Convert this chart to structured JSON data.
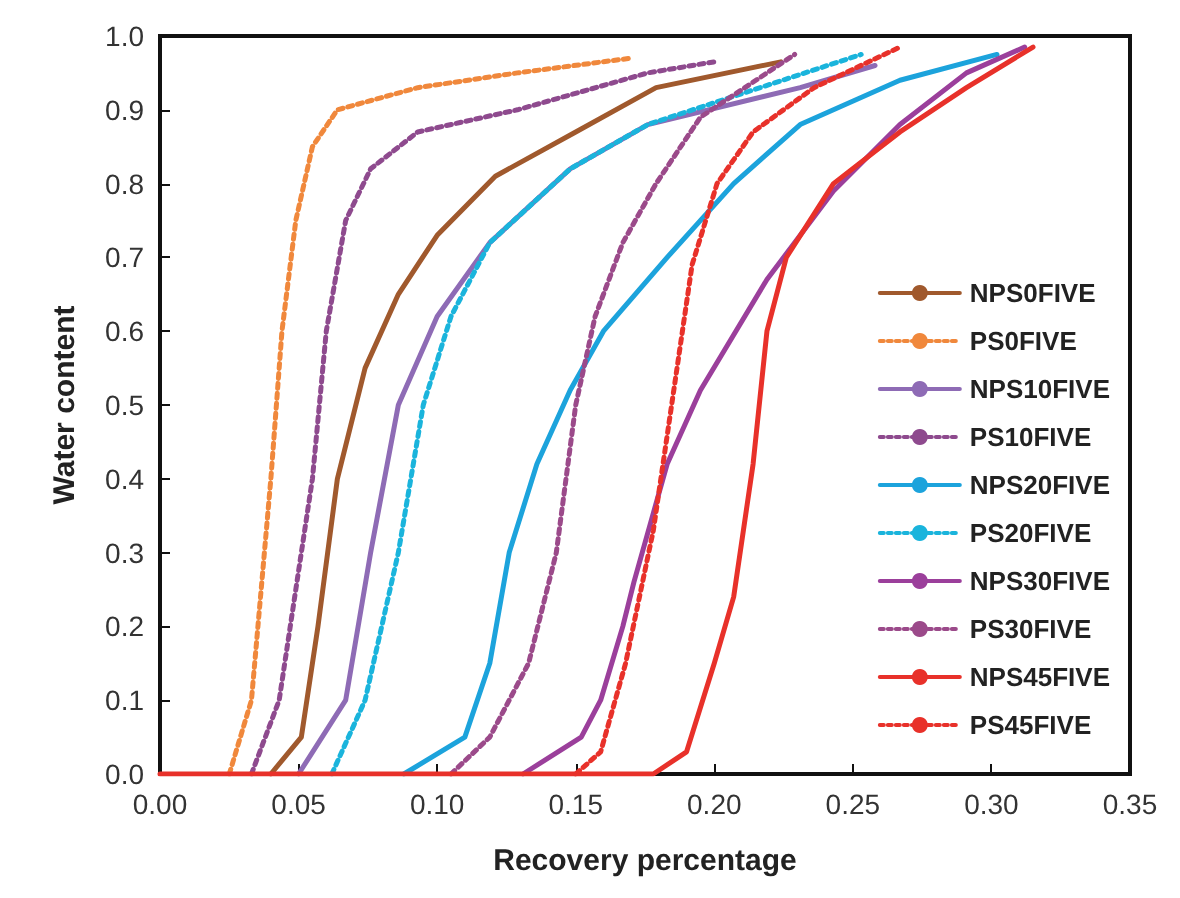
{
  "chart_data": {
    "type": "line",
    "xlabel": "Recovery percentage",
    "ylabel": "Water content",
    "xlim": [
      0,
      0.35
    ],
    "ylim": [
      0,
      1.0
    ],
    "xticks": [
      {
        "value": 0,
        "label": "0.00"
      },
      {
        "value": 0.05,
        "label": "0.05"
      },
      {
        "value": 0.1,
        "label": "0.10"
      },
      {
        "value": 0.15,
        "label": "0.15"
      },
      {
        "value": 0.2,
        "label": "0.20"
      },
      {
        "value": 0.25,
        "label": "0.25"
      },
      {
        "value": 0.3,
        "label": "0.30"
      },
      {
        "value": 0.35,
        "label": "0.35"
      }
    ],
    "yticks": [
      {
        "value": 0,
        "label": "0.0"
      },
      {
        "value": 0.1,
        "label": "0.1"
      },
      {
        "value": 0.2,
        "label": "0.2"
      },
      {
        "value": 0.3,
        "label": "0.3"
      },
      {
        "value": 0.4,
        "label": "0.4"
      },
      {
        "value": 0.5,
        "label": "0.5"
      },
      {
        "value": 0.6,
        "label": "0.6"
      },
      {
        "value": 0.7,
        "label": "0.7"
      },
      {
        "value": 0.8,
        "label": "0.8"
      },
      {
        "value": 0.9,
        "label": "0.9"
      },
      {
        "value": 1.0,
        "label": "1.0"
      }
    ],
    "legend": "right",
    "marker": "none",
    "series": [
      {
        "name": "NPS0FIVE",
        "color": "#a0592d",
        "line_style": "solid",
        "x": [
          0.04,
          0.051,
          0.057,
          0.064,
          0.074,
          0.086,
          0.1,
          0.121,
          0.15,
          0.179,
          0.224
        ],
        "values": [
          0,
          0.05,
          0.2,
          0.4,
          0.55,
          0.65,
          0.73,
          0.81,
          0.87,
          0.93,
          0.965
        ]
      },
      {
        "name": "PS0FIVE",
        "color": "#f0883c",
        "line_style": "dotted",
        "x": [
          0.025,
          0.033,
          0.04,
          0.044,
          0.049,
          0.055,
          0.064,
          0.093,
          0.129,
          0.17
        ],
        "values": [
          0,
          0.1,
          0.4,
          0.6,
          0.75,
          0.85,
          0.9,
          0.93,
          0.95,
          0.97
        ]
      },
      {
        "name": "NPS10FIVE",
        "color": "#8e6bb5",
        "line_style": "solid",
        "x": [
          0.05,
          0.067,
          0.076,
          0.086,
          0.1,
          0.119,
          0.148,
          0.176,
          0.231,
          0.258
        ],
        "values": [
          0,
          0.1,
          0.3,
          0.5,
          0.62,
          0.72,
          0.82,
          0.88,
          0.93,
          0.96
        ]
      },
      {
        "name": "PS10FIVE",
        "color": "#8e4a8e",
        "line_style": "dotted",
        "x": [
          0.033,
          0.043,
          0.055,
          0.06,
          0.067,
          0.076,
          0.093,
          0.129,
          0.176,
          0.2
        ],
        "values": [
          0,
          0.1,
          0.4,
          0.6,
          0.75,
          0.82,
          0.87,
          0.9,
          0.95,
          0.965
        ]
      },
      {
        "name": "NPS20FIVE",
        "color": "#1ca3dc",
        "line_style": "solid",
        "x": [
          0.088,
          0.11,
          0.119,
          0.126,
          0.136,
          0.148,
          0.16,
          0.183,
          0.207,
          0.231,
          0.267,
          0.302
        ],
        "values": [
          0,
          0.05,
          0.15,
          0.3,
          0.42,
          0.52,
          0.6,
          0.7,
          0.8,
          0.88,
          0.94,
          0.975
        ]
      },
      {
        "name": "PS20FIVE",
        "color": "#1ab4dc",
        "line_style": "dotted",
        "x": [
          0.062,
          0.074,
          0.086,
          0.095,
          0.105,
          0.119,
          0.148,
          0.176,
          0.253
        ],
        "values": [
          0,
          0.1,
          0.3,
          0.5,
          0.62,
          0.72,
          0.82,
          0.88,
          0.975
        ]
      },
      {
        "name": "NPS30FIVE",
        "color": "#9b3f9b",
        "line_style": "solid",
        "x": [
          0.131,
          0.152,
          0.159,
          0.167,
          0.171,
          0.183,
          0.195,
          0.219,
          0.243,
          0.267,
          0.291,
          0.312
        ],
        "values": [
          0,
          0.05,
          0.1,
          0.2,
          0.26,
          0.42,
          0.52,
          0.67,
          0.79,
          0.88,
          0.95,
          0.985
        ]
      },
      {
        "name": "PS30FIVE",
        "color": "#9b4a8a",
        "line_style": "dotted",
        "x": [
          0.105,
          0.119,
          0.133,
          0.143,
          0.15,
          0.157,
          0.167,
          0.179,
          0.195,
          0.219,
          0.229
        ],
        "values": [
          0,
          0.05,
          0.15,
          0.3,
          0.5,
          0.62,
          0.72,
          0.8,
          0.89,
          0.95,
          0.975
        ]
      },
      {
        "name": "NPS45FIVE",
        "color": "#e8312a",
        "line_style": "solid",
        "x": [
          0,
          0.178,
          0.19,
          0.2,
          0.207,
          0.214,
          0.219,
          0.226,
          0.243,
          0.267,
          0.291,
          0.315
        ],
        "values": [
          0,
          0,
          0.03,
          0.15,
          0.24,
          0.42,
          0.6,
          0.7,
          0.8,
          0.87,
          0.93,
          0.985
        ]
      },
      {
        "name": "PS45FIVE",
        "color": "#e8312a",
        "line_style": "dotted",
        "x": [
          0.15,
          0.159,
          0.168,
          0.178,
          0.185,
          0.192,
          0.201,
          0.214,
          0.236,
          0.267
        ],
        "values": [
          0,
          0.03,
          0.15,
          0.33,
          0.51,
          0.69,
          0.8,
          0.87,
          0.93,
          0.985
        ]
      }
    ]
  }
}
